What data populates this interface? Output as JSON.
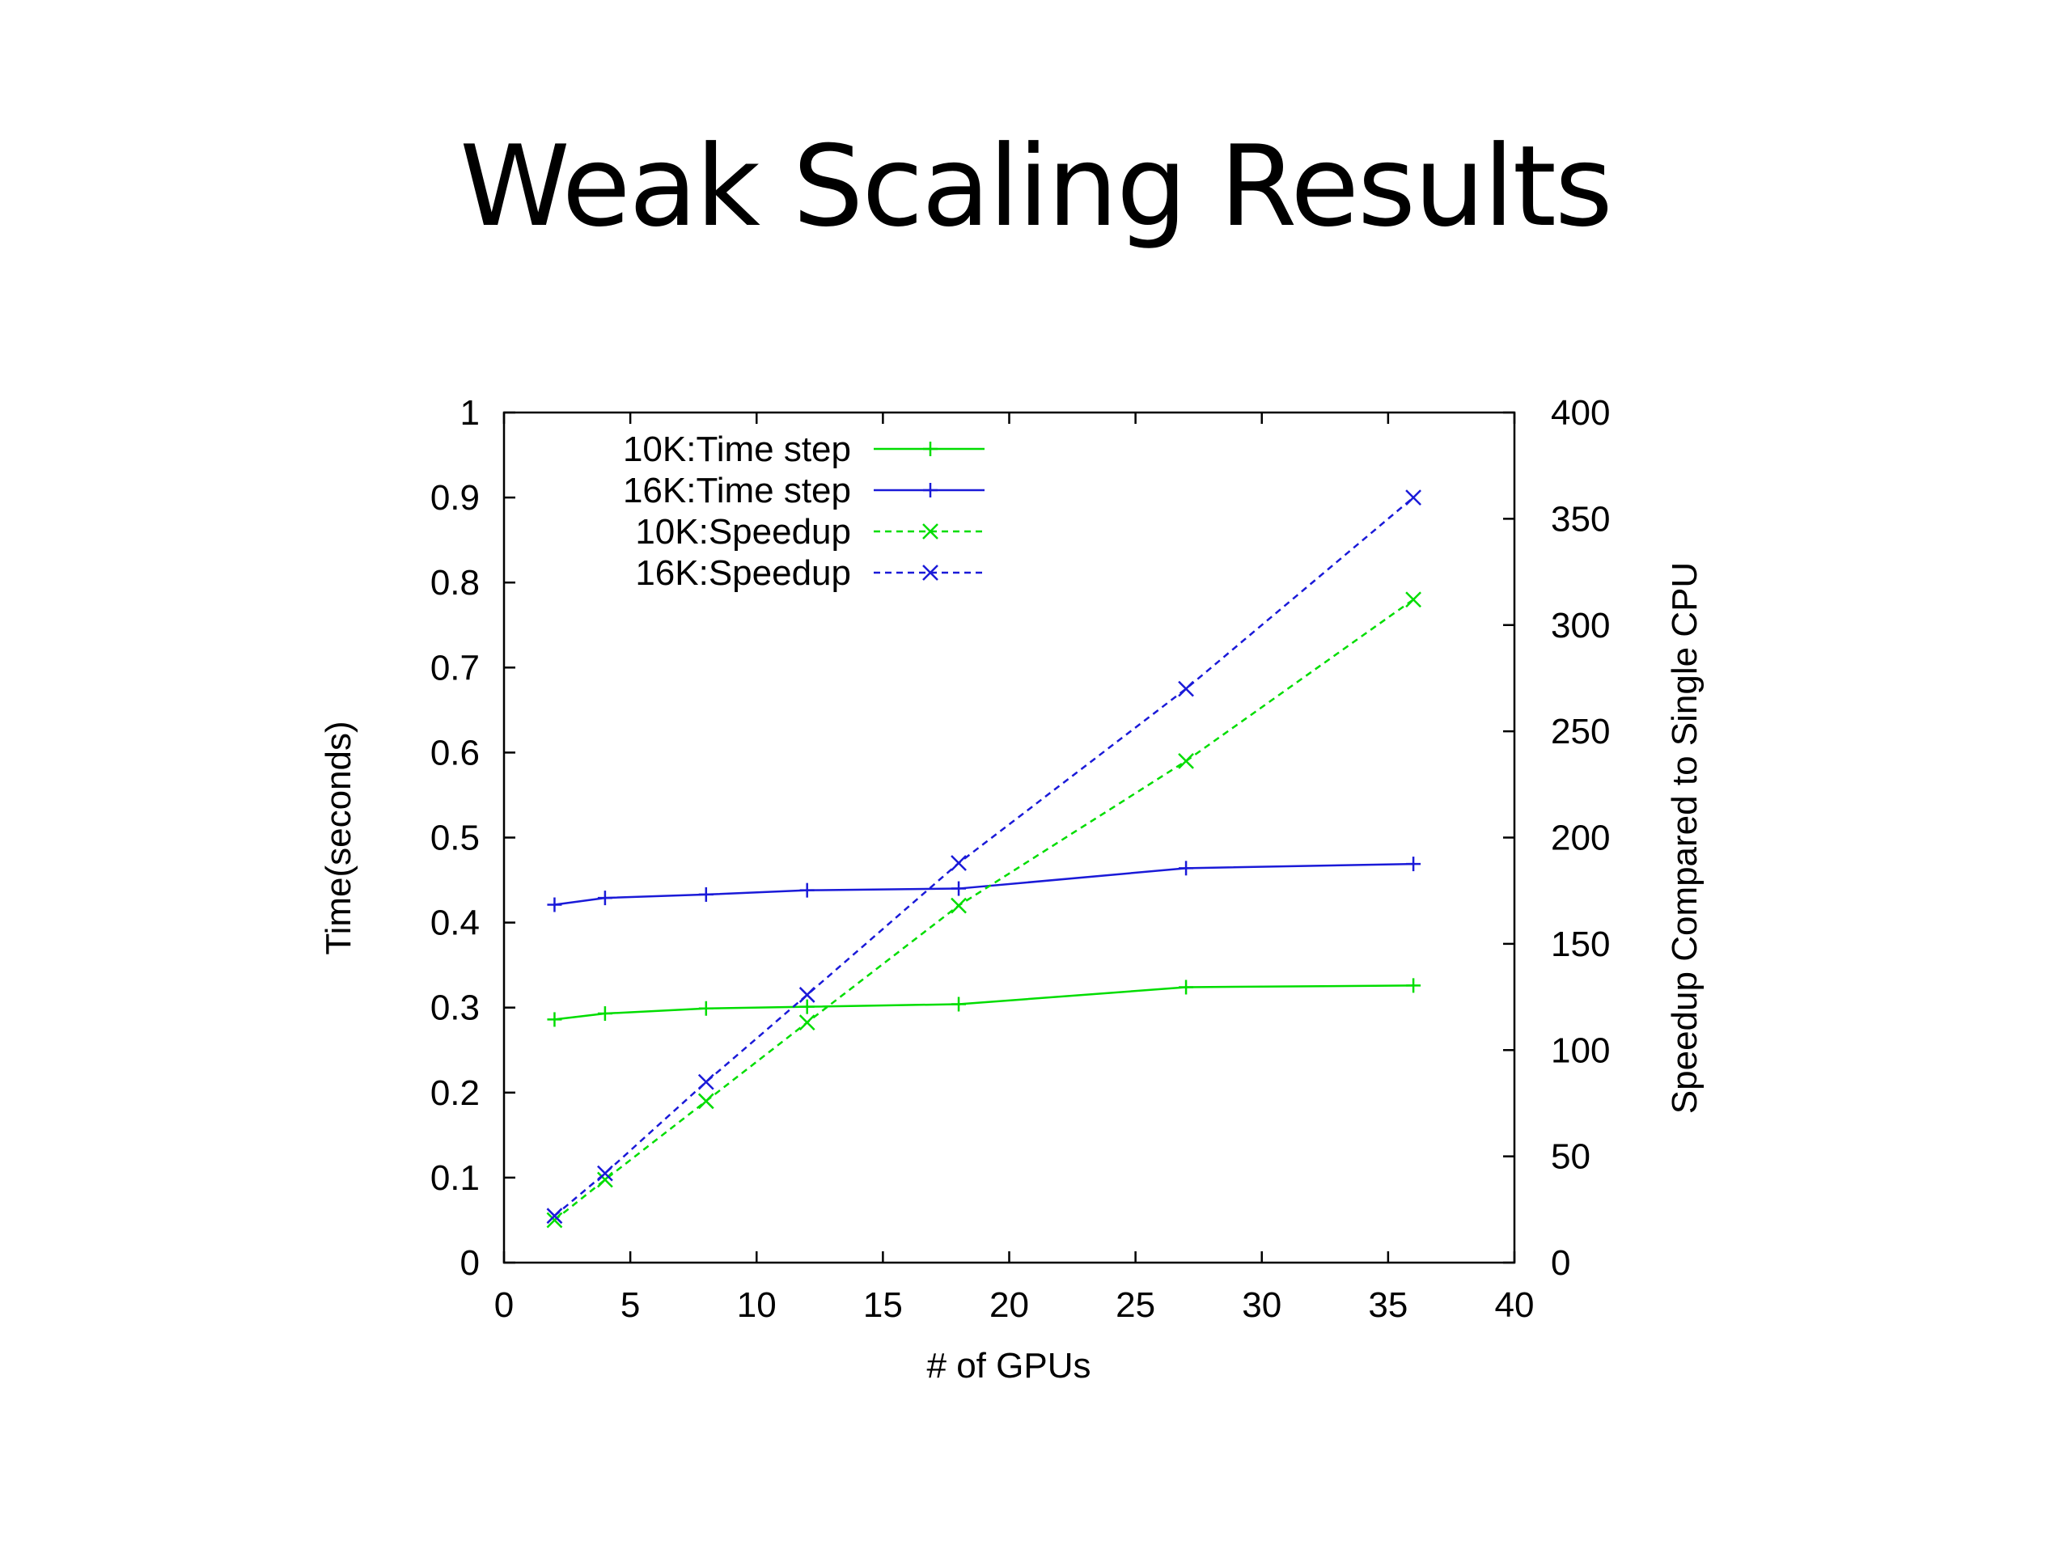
{
  "slide": {
    "title": "Weak Scaling Results"
  },
  "chart_data": {
    "type": "line",
    "title": "",
    "xlabel": "# of GPUs",
    "ylabel": "Time(seconds)",
    "y2label": "Speedup Compared to Single CPU",
    "xlim": [
      0,
      40
    ],
    "ylim": [
      0,
      1
    ],
    "y2lim": [
      0,
      400
    ],
    "xticks": [
      0,
      5,
      10,
      15,
      20,
      25,
      30,
      35,
      40
    ],
    "yticks": [
      0,
      0.1,
      0.2,
      0.3,
      0.4,
      0.5,
      0.6,
      0.7,
      0.8,
      0.9,
      1
    ],
    "y2ticks": [
      0,
      50,
      100,
      150,
      200,
      250,
      300,
      350,
      400
    ],
    "grid": false,
    "legend_position": "top-left",
    "series": [
      {
        "name": "10K:Time step",
        "axis": "left",
        "color": "#00dd00",
        "style": "solid",
        "marker": "+",
        "x": [
          2,
          4,
          8,
          12,
          18,
          27,
          36
        ],
        "y": [
          0.286,
          0.293,
          0.299,
          0.301,
          0.304,
          0.324,
          0.326
        ]
      },
      {
        "name": "16K:Time step",
        "axis": "left",
        "color": "#1a1ad8",
        "style": "solid",
        "marker": "+",
        "x": [
          2,
          4,
          8,
          12,
          18,
          27,
          36
        ],
        "y": [
          0.421,
          0.429,
          0.433,
          0.438,
          0.44,
          0.464,
          0.469
        ]
      },
      {
        "name": "10K:Speedup",
        "axis": "right",
        "color": "#00dd00",
        "style": "dashed",
        "marker": "x",
        "x": [
          2,
          4,
          8,
          12,
          18,
          27,
          36
        ],
        "y": [
          20,
          39,
          76,
          113,
          168,
          236,
          312
        ]
      },
      {
        "name": "16K:Speedup",
        "axis": "right",
        "color": "#1a1ad8",
        "style": "dashed",
        "marker": "x",
        "x": [
          2,
          4,
          8,
          12,
          18,
          27,
          36
        ],
        "y": [
          22,
          42,
          85,
          126,
          188,
          270,
          360
        ]
      }
    ]
  }
}
